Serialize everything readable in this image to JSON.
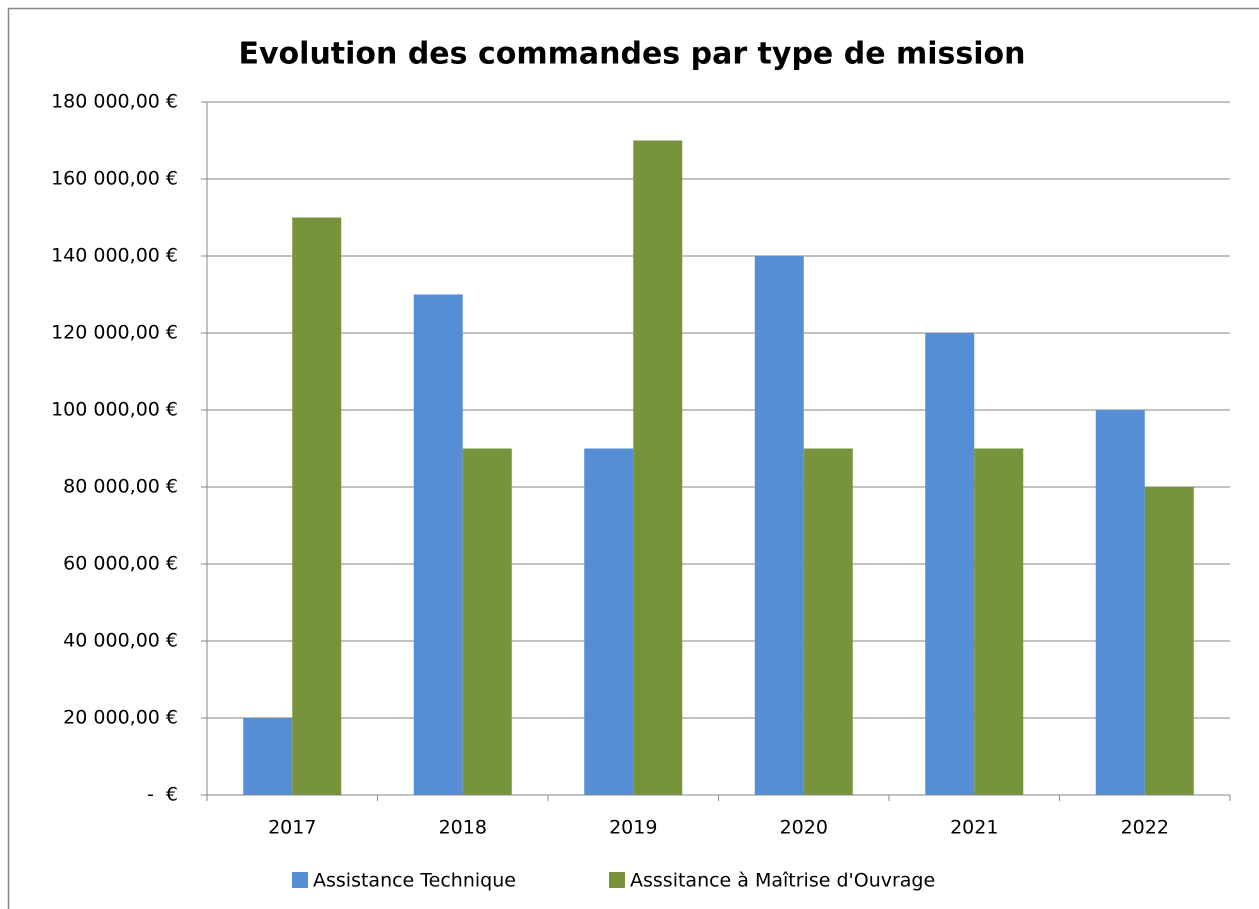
{
  "chart_data": {
    "type": "bar",
    "title": "Evolution des commandes par type de mission",
    "categories": [
      "2017",
      "2018",
      "2019",
      "2020",
      "2021",
      "2022"
    ],
    "series": [
      {
        "name": "Assistance Technique",
        "color": "#558ed5",
        "values": [
          20000,
          130000,
          90000,
          140000,
          120000,
          100000
        ]
      },
      {
        "name": "Asssitance à Maîtrise d'Ouvrage",
        "color": "#77933c",
        "values": [
          150000,
          90000,
          170000,
          90000,
          90000,
          80000
        ]
      }
    ],
    "ylim": [
      0,
      180000
    ],
    "yticks": [
      {
        "value": 0,
        "label": "-  €"
      },
      {
        "value": 20000,
        "label": "20 000,00 €"
      },
      {
        "value": 40000,
        "label": "40 000,00 €"
      },
      {
        "value": 60000,
        "label": "60 000,00 €"
      },
      {
        "value": 80000,
        "label": "80 000,00 €"
      },
      {
        "value": 100000,
        "label": "100 000,00 €"
      },
      {
        "value": 120000,
        "label": "120 000,00 €"
      },
      {
        "value": 140000,
        "label": "140 000,00 €"
      },
      {
        "value": 160000,
        "label": "160 000,00 €"
      },
      {
        "value": 180000,
        "label": "180 000,00 €"
      }
    ],
    "grid": true,
    "legend": "bottom"
  }
}
